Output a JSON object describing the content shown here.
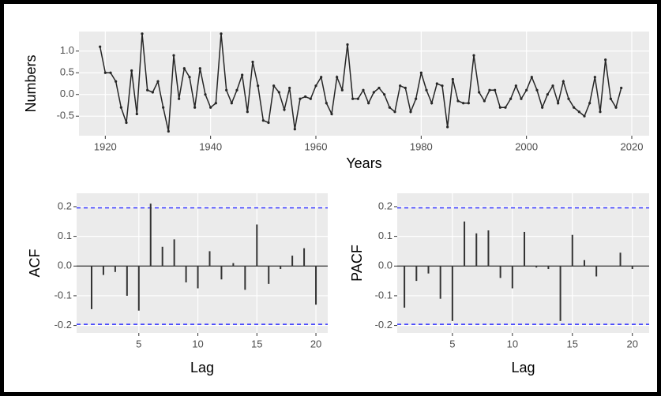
{
  "chart_data": [
    {
      "type": "line",
      "ylabel": "Numbers",
      "xlabel": "Years",
      "color": "#262626",
      "x": [
        1919,
        1920,
        1921,
        1922,
        1923,
        1924,
        1925,
        1926,
        1927,
        1928,
        1929,
        1930,
        1931,
        1932,
        1933,
        1934,
        1935,
        1936,
        1937,
        1938,
        1939,
        1940,
        1941,
        1942,
        1943,
        1944,
        1945,
        1946,
        1947,
        1948,
        1949,
        1950,
        1951,
        1952,
        1953,
        1954,
        1955,
        1956,
        1957,
        1958,
        1959,
        1960,
        1961,
        1962,
        1963,
        1964,
        1965,
        1966,
        1967,
        1968,
        1969,
        1970,
        1971,
        1972,
        1973,
        1974,
        1975,
        1976,
        1977,
        1978,
        1979,
        1980,
        1981,
        1982,
        1983,
        1984,
        1985,
        1986,
        1987,
        1988,
        1989,
        1990,
        1991,
        1992,
        1993,
        1994,
        1995,
        1996,
        1997,
        1998,
        1999,
        2000,
        2001,
        2002,
        2003,
        2004,
        2005,
        2006,
        2007,
        2008,
        2009,
        2010,
        2011,
        2012,
        2013,
        2014,
        2015,
        2016,
        2017,
        2018
      ],
      "values": [
        1.1,
        0.5,
        0.5,
        0.3,
        -0.3,
        -0.65,
        0.55,
        -0.45,
        1.4,
        0.1,
        0.05,
        0.3,
        -0.3,
        -0.85,
        0.9,
        -0.1,
        0.6,
        0.4,
        -0.3,
        0.6,
        0.0,
        -0.3,
        -0.2,
        1.4,
        0.1,
        -0.2,
        0.1,
        0.45,
        -0.4,
        0.75,
        0.2,
        -0.6,
        -0.65,
        0.2,
        0.05,
        -0.35,
        0.15,
        -0.8,
        -0.1,
        -0.05,
        -0.1,
        0.2,
        0.4,
        -0.2,
        -0.45,
        0.4,
        0.1,
        1.15,
        -0.1,
        -0.1,
        0.1,
        -0.2,
        0.05,
        0.15,
        0.0,
        -0.3,
        -0.4,
        0.2,
        0.15,
        -0.4,
        -0.1,
        0.5,
        0.1,
        -0.2,
        0.25,
        0.2,
        -0.75,
        0.35,
        -0.15,
        -0.2,
        -0.2,
        0.9,
        0.05,
        -0.15,
        0.1,
        0.1,
        -0.3,
        -0.3,
        -0.1,
        0.2,
        -0.1,
        0.1,
        0.4,
        0.1,
        -0.3,
        0.0,
        0.2,
        -0.2,
        0.3,
        -0.1,
        -0.3,
        -0.4,
        -0.5,
        -0.2,
        0.4,
        -0.4,
        0.8,
        -0.1,
        -0.3,
        0.15
      ],
      "xlim": [
        1915,
        2023.3
      ],
      "ylim": [
        -0.95,
        1.45
      ],
      "xticks": [
        1920,
        1940,
        1960,
        1980,
        2000,
        2020
      ],
      "yticks": [
        -0.5,
        {
          "value": 0,
          "label": "0.0"
        },
        0.5,
        {
          "value": 1,
          "label": "1.0"
        }
      ],
      "grid": true
    },
    {
      "type": "bar",
      "ylabel": "ACF",
      "xlabel": "Lag",
      "color": "#333333",
      "x": [
        1,
        2,
        3,
        4,
        5,
        6,
        7,
        8,
        9,
        10,
        11,
        12,
        13,
        14,
        15,
        16,
        17,
        18,
        19,
        20
      ],
      "values": [
        -0.145,
        -0.03,
        -0.02,
        -0.1,
        -0.15,
        0.21,
        0.065,
        0.09,
        -0.055,
        -0.075,
        0.05,
        -0.045,
        0.01,
        -0.08,
        0.14,
        -0.06,
        -0.01,
        0.035,
        0.06,
        -0.13
      ],
      "xlim": [
        -0.27,
        21
      ],
      "ylim": [
        -0.225,
        0.245
      ],
      "xticks": [
        5,
        10,
        15,
        20
      ],
      "yticks": [
        -0.2,
        -0.1,
        {
          "value": 0,
          "label": "0.0"
        },
        0.1,
        0.2
      ],
      "grid": true,
      "reference_line": 0,
      "threshold_lines": [
        0.196,
        -0.196
      ],
      "threshold_color": "#3333ff"
    },
    {
      "type": "bar",
      "ylabel": "PACF",
      "xlabel": "Lag",
      "color": "#333333",
      "x": [
        1,
        2,
        3,
        4,
        5,
        6,
        7,
        8,
        9,
        10,
        11,
        12,
        13,
        14,
        15,
        16,
        17,
        18,
        19,
        20
      ],
      "values": [
        -0.14,
        -0.05,
        -0.025,
        -0.11,
        -0.185,
        0.15,
        0.11,
        0.12,
        -0.04,
        -0.075,
        0.115,
        -0.005,
        -0.01,
        -0.185,
        0.105,
        0.02,
        -0.035,
        0.0,
        0.045,
        -0.01
      ],
      "xlim": [
        0.4,
        21.4
      ],
      "ylim": [
        -0.225,
        0.245
      ],
      "xticks": [
        5,
        10,
        15,
        20
      ],
      "yticks": [
        -0.2,
        -0.1,
        {
          "value": 0,
          "label": "0.0"
        },
        0.1,
        0.2
      ],
      "grid": true,
      "reference_line": 0,
      "threshold_lines": [
        0.196,
        -0.196
      ],
      "threshold_color": "#3333ff"
    }
  ]
}
